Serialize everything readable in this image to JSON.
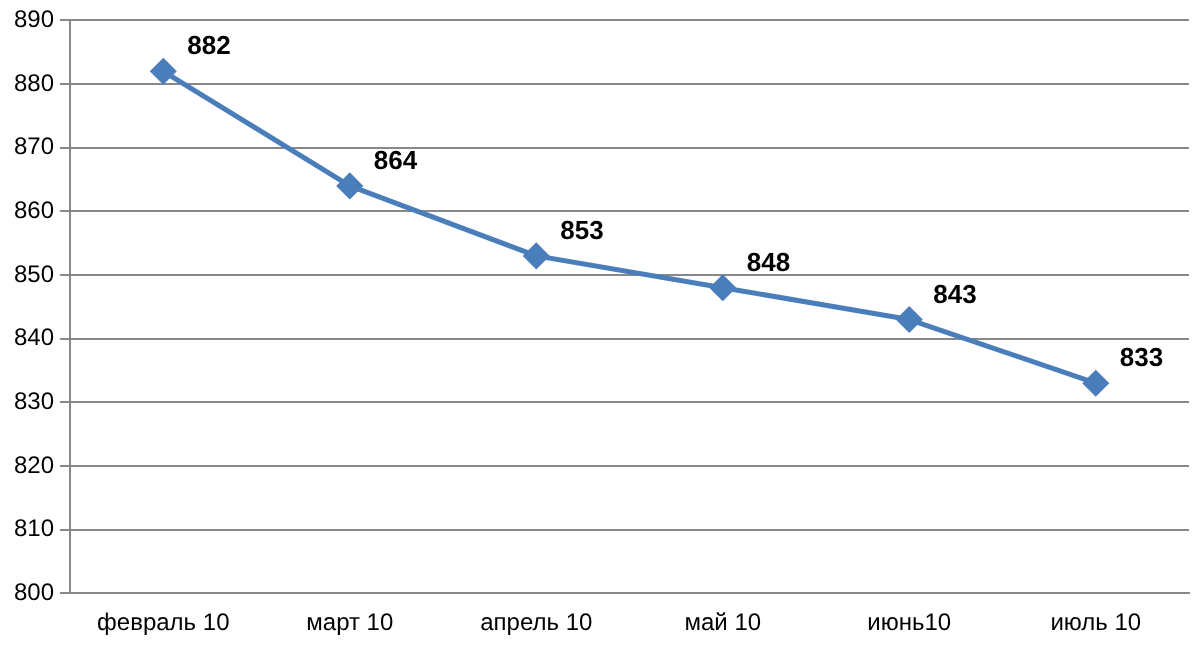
{
  "chart_data": {
    "type": "line",
    "categories": [
      "февраль 10",
      "март 10",
      "апрель 10",
      "май 10",
      "июнь10",
      "июль 10"
    ],
    "series": [
      {
        "color": "#4a7ebb",
        "values": [
          882,
          864,
          853,
          848,
          843,
          833
        ]
      }
    ],
    "ylim": [
      800,
      890
    ],
    "yticks": [
      800,
      810,
      820,
      830,
      840,
      850,
      860,
      870,
      880,
      890
    ],
    "grid": "y",
    "legend": false,
    "marker": "diamond",
    "line_style": "solid",
    "data_labels": true
  }
}
